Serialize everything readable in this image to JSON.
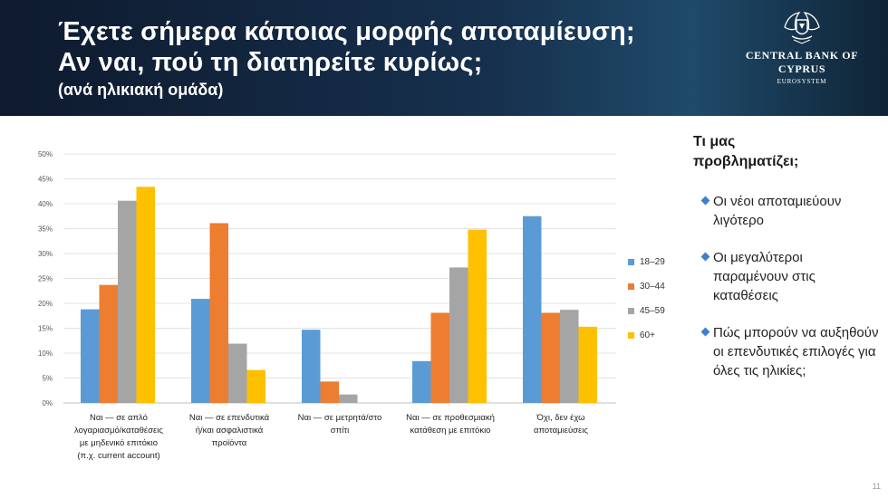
{
  "header": {
    "title_line1": "Έχετε σήμερα κάποιας μορφής αποταμίευση;",
    "title_line2": "Αν ναι, πού τη διατηρείτε κυρίως;",
    "subtitle": "(ανά ηλικιακή ομάδα)",
    "logo_icon": "coat-of-arms-icon",
    "logo_name": "CENTRAL BANK OF CYPRUS",
    "logo_sub": "EUROSYSTEM"
  },
  "chart_data": {
    "type": "bar",
    "title": "",
    "xlabel": "",
    "ylabel": "",
    "ylim": [
      0,
      50
    ],
    "y_ticks": [
      "0%",
      "5%",
      "10%",
      "15%",
      "20%",
      "25%",
      "30%",
      "35%",
      "40%",
      "45%",
      "50%"
    ],
    "grid": true,
    "legend_position": "right",
    "categories": [
      [
        "Ναι — σε απλό",
        "λογαριασμό/καταθέσεις",
        "με μηδενικό επιτόκιο",
        "(π.χ. current account)"
      ],
      [
        "Ναι — σε επενδυτικά",
        "ή/και ασφαλιστικά",
        "προϊόντα"
      ],
      [
        "Ναι — σε μετρητά/στο",
        "σπίτι"
      ],
      [
        "Ναι — σε προθεσμιακή",
        "κατάθεση με επιτόκιο"
      ],
      [
        "Όχι, δεν έχω",
        "αποταμιεύσεις"
      ]
    ],
    "series": [
      {
        "name": "18–29",
        "color": "#5b9bd5",
        "values": [
          18.8,
          20.9,
          14.7,
          8.4,
          37.5
        ]
      },
      {
        "name": "30–44",
        "color": "#ed7d31",
        "values": [
          23.7,
          36.1,
          4.3,
          18.1,
          18.1
        ]
      },
      {
        "name": "45–59",
        "color": "#a5a5a5",
        "values": [
          40.6,
          11.9,
          1.7,
          27.2,
          18.7
        ]
      },
      {
        "name": "60+",
        "color": "#ffc000",
        "values": [
          43.4,
          6.6,
          0,
          34.8,
          15.3
        ]
      }
    ]
  },
  "sidebar": {
    "heading_line1": "Τι μας",
    "heading_line2": "προβληματίζει;",
    "bullets": [
      "Οι νέοι αποταμιεύουν λιγότερο",
      "Οι μεγαλύτεροι παραμένουν στις καταθέσεις",
      "Πώς μπορούν να αυξηθούν οι επενδυτικές επιλογές για όλες τις ηλικίες;"
    ],
    "bullet_icon": "diamond-bullet-icon",
    "bullet_color": "#3d7fd0"
  },
  "footer": {
    "page_number": "11"
  }
}
